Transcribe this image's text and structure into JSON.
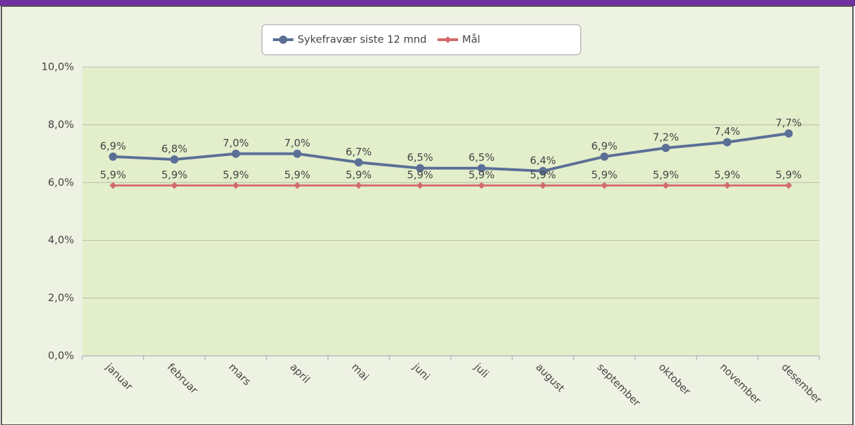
{
  "chart_data": {
    "type": "line",
    "categories": [
      "januar",
      "februar",
      "mars",
      "april",
      "mai",
      "juni",
      "juli",
      "august",
      "september",
      "oktober",
      "november",
      "desember"
    ],
    "series": [
      {
        "name": "Sykefravær siste 12 mnd",
        "color": "#5b6f96",
        "marker": "circle",
        "values": [
          6.9,
          6.8,
          7.0,
          7.0,
          6.7,
          6.5,
          6.5,
          6.4,
          6.9,
          7.2,
          7.4,
          7.7
        ],
        "value_labels": [
          "6,9%",
          "6,8%",
          "7,0%",
          "7,0%",
          "6,7%",
          "6,5%",
          "6,5%",
          "6,4%",
          "6,9%",
          "7,2%",
          "7,4%",
          "7,7%"
        ]
      },
      {
        "name": "Mål",
        "color": "#d46a6a",
        "marker": "diamond",
        "values": [
          5.9,
          5.9,
          5.9,
          5.9,
          5.9,
          5.9,
          5.9,
          5.9,
          5.9,
          5.9,
          5.9,
          5.9
        ],
        "value_labels": [
          "5,9%",
          "5,9%",
          "5,9%",
          "5,9%",
          "5,9%",
          "5,9%",
          "5,9%",
          "5,9%",
          "5,9%",
          "5,9%",
          "5,9%",
          "5,9%"
        ]
      }
    ],
    "ylim": [
      0,
      10
    ],
    "yticks": [
      {
        "value": 0,
        "label": "0,0%"
      },
      {
        "value": 2,
        "label": "2,0%"
      },
      {
        "value": 4,
        "label": "4,0%"
      },
      {
        "value": 6,
        "label": "6,0%"
      },
      {
        "value": 8,
        "label": "8,0%"
      },
      {
        "value": 10,
        "label": "10,0%"
      }
    ],
    "grid": true,
    "legend": "top"
  }
}
